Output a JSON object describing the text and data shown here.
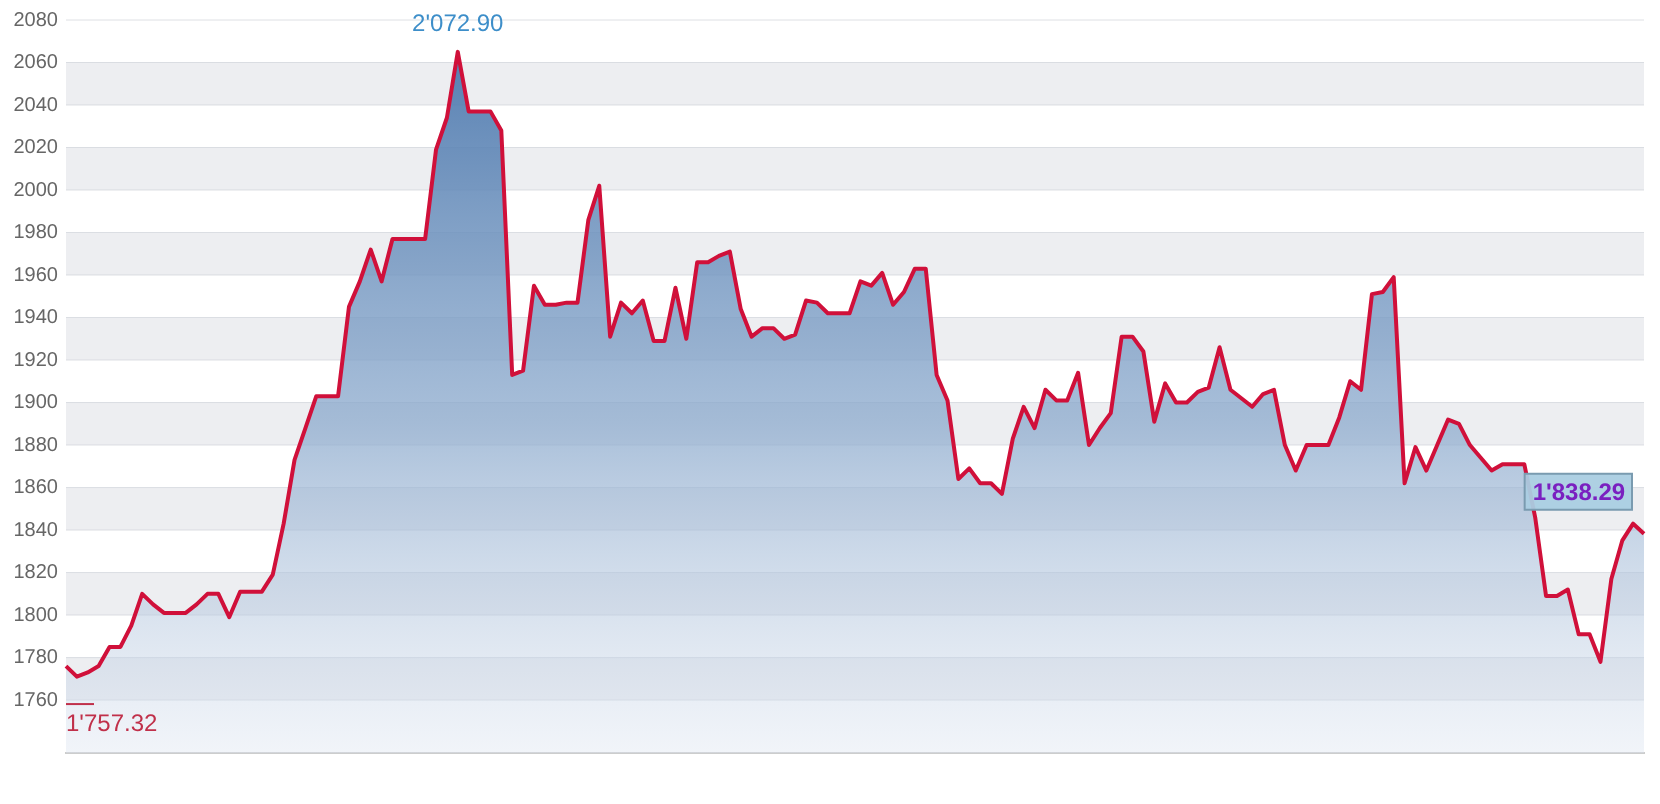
{
  "chart_data": {
    "type": "area",
    "categories": [
      null,
      null,
      null,
      null,
      null,
      null,
      null,
      null,
      null,
      null,
      null,
      null,
      null,
      null,
      null,
      null,
      null,
      null,
      null,
      null,
      null,
      null,
      null,
      null,
      null,
      null,
      null,
      null,
      null,
      null,
      null,
      null,
      null,
      null,
      null,
      null,
      null,
      null,
      null,
      null,
      null,
      null,
      null,
      null,
      null,
      null,
      null,
      null,
      null,
      null,
      null,
      null,
      null,
      null,
      null,
      null,
      null,
      null,
      null,
      null,
      null,
      null,
      null,
      null,
      null,
      null,
      null,
      null,
      null,
      null,
      null,
      null,
      null,
      null,
      null,
      null,
      null,
      null,
      null,
      null,
      null,
      null,
      null,
      null,
      null,
      null,
      null,
      null,
      null,
      null,
      null,
      null,
      null,
      null,
      null,
      null,
      null,
      null,
      null,
      null,
      null,
      null,
      null,
      null,
      null,
      null,
      null,
      null,
      null,
      null,
      null,
      null,
      null,
      null,
      null,
      null,
      null,
      null,
      null,
      null,
      null,
      null,
      null,
      null,
      null,
      null,
      null,
      null,
      null,
      null,
      null,
      null,
      null,
      null,
      null,
      null,
      null,
      null,
      null,
      null,
      null,
      null,
      null,
      null,
      null,
      null
    ],
    "series": [
      {
        "color": "#d0103a",
        "values": [
          1776,
          1771,
          1773,
          1776,
          1785,
          1785,
          1795,
          1810,
          1805,
          1801,
          1801,
          1801,
          1805,
          1810,
          1810,
          1799,
          1811,
          1811,
          1811,
          1819,
          1843,
          1873,
          1888,
          1903,
          1903,
          1903,
          1945,
          1957,
          1972,
          1957,
          1977,
          1977,
          1977,
          1977,
          2019,
          2034,
          2065,
          2037,
          2037,
          2037,
          2028,
          1913,
          1915,
          1955,
          1946,
          1946,
          1947,
          1947,
          1986,
          2002,
          1931,
          1947,
          1942,
          1948,
          1929,
          1929,
          1954,
          1930,
          1966,
          1966,
          1969,
          1971,
          1944,
          1931,
          1935,
          1935,
          1930,
          1932,
          1948,
          1947,
          1942,
          1942,
          1942,
          1957,
          1955,
          1961,
          1946,
          1952,
          1963,
          1963,
          1913,
          1901,
          1864,
          1869,
          1862,
          1862,
          1857,
          1883,
          1898,
          1888,
          1906,
          1901,
          1901,
          1914,
          1880,
          1888,
          1895,
          1931,
          1931,
          1924,
          1891,
          1909,
          1900,
          1900,
          1905,
          1907,
          1926,
          1906,
          1902,
          1898,
          1904,
          1906,
          1880,
          1868,
          1880,
          1880,
          1880,
          1893,
          1910,
          1906,
          1951,
          1952,
          1959,
          1862,
          1879,
          1868,
          1880,
          1892,
          1890,
          1880,
          1874,
          1868,
          1871,
          1871,
          1871,
          1846,
          1809,
          1809,
          1812,
          1791,
          1791,
          1778,
          1817,
          1835,
          1843,
          1838.29
        ]
      }
    ],
    "ylim": [
      1735,
      2080
    ],
    "yticks": [
      1760,
      1780,
      1800,
      1820,
      1840,
      1860,
      1880,
      1900,
      1920,
      1940,
      1960,
      1980,
      2000,
      2020,
      2040,
      2060,
      2080
    ],
    "grid": "y",
    "legend": false,
    "marker": "none",
    "line_style": "solid",
    "annotations": [
      "2'072.90",
      "1'757.32",
      "1'838.29"
    ]
  }
}
